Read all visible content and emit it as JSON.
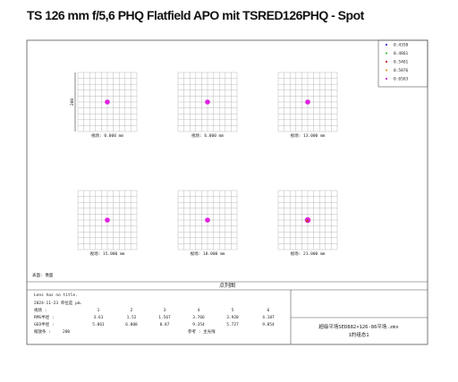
{
  "title": "TS 126 mm f/5,6 PHQ Flatfield APO mit TSRED126PHQ - Spot",
  "legend": [
    {
      "label": "0.4358",
      "color": "#3b3bd6"
    },
    {
      "label": "0.4861",
      "color": "#3fbf3f"
    },
    {
      "label": "0.5461",
      "color": "#c02020"
    },
    {
      "label": "0.5876",
      "color": "#e0a020"
    },
    {
      "label": "0.6563",
      "color": "#d020d0"
    }
  ],
  "scale_label": "200",
  "fields": [
    "视场: 0.000 mm",
    "视场: 6.000 mm",
    "视场: 13.000 mm",
    "视场: 15.000 mm",
    "视场: 18.000 mm",
    "视场: 21.000 mm"
  ],
  "surface": "表面: 像面",
  "panel_title": "点列图",
  "info": {
    "line1": "Lens has no title.",
    "line2": "2024-11-23  单位是 μm.",
    "field_label": "视场  :",
    "field_numbers": [
      "1",
      "2",
      "3",
      "4",
      "5",
      "6"
    ],
    "rms_label": "RMS半径 :",
    "rms": [
      "3.61",
      "1.52",
      "1.567",
      "3.766",
      "3.928",
      "4.187"
    ],
    "geo_label": "GEO半径 :",
    "geo": [
      "5.861",
      "6.808",
      "8.87",
      "9.354",
      "5.727",
      "9.854"
    ],
    "scale_label": "缩放条  :",
    "scale": "200",
    "reference": "参考  : 主光线"
  },
  "file_box": {
    "file": "超级平场SED882×126-86平场.zmx",
    "config": "1的组态1"
  }
}
